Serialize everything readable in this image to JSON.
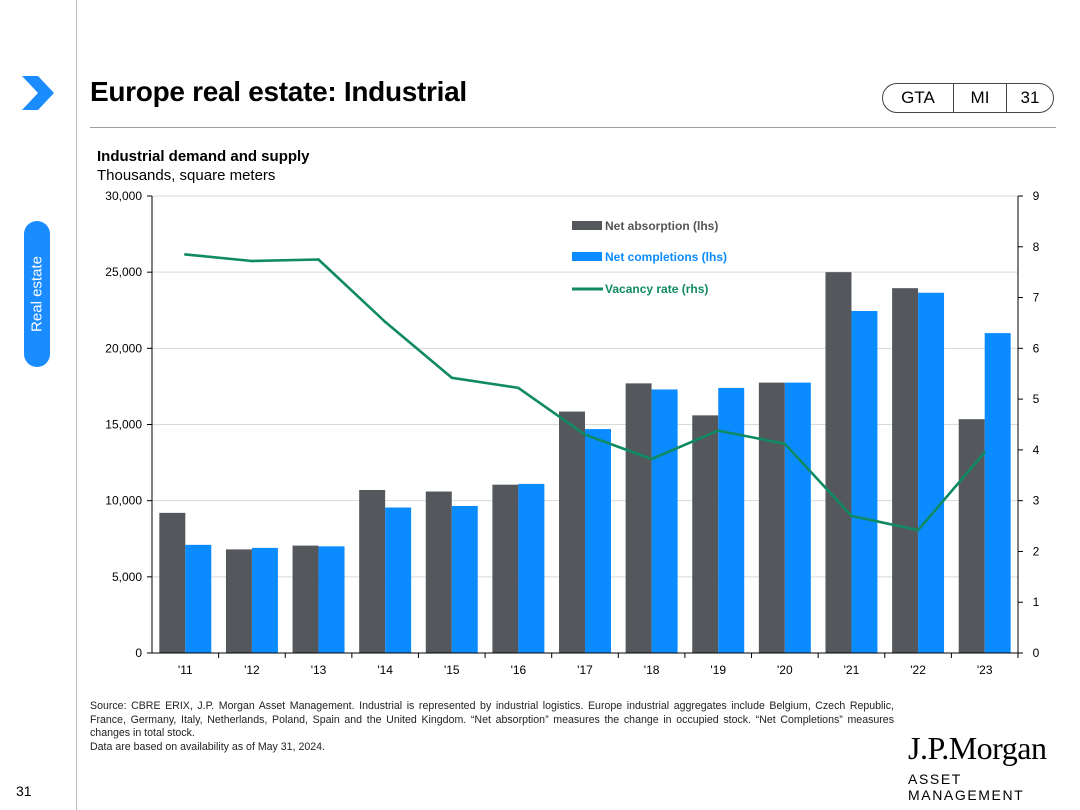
{
  "page": {
    "title": "Europe real estate: Industrial",
    "side_tab": "Real estate",
    "badges": [
      "GTA",
      "MI",
      "31"
    ],
    "page_number": "31"
  },
  "colors": {
    "absorption": "#54575c",
    "completions": "#0a8bff",
    "vacancy": "#0f8a62",
    "accent": "#1a8cff"
  },
  "chart_data": {
    "type": "bar",
    "title": "Industrial demand and supply",
    "subtitle": "Thousands, square meters",
    "categories": [
      "'11",
      "'12",
      "'13",
      "'14",
      "'15",
      "'16",
      "'17",
      "'18",
      "'19",
      "'20",
      "'21",
      "'22",
      "'23"
    ],
    "series": [
      {
        "name": "Net absorption (lhs)",
        "type": "bar",
        "axis": "left",
        "values": [
          9200,
          6800,
          7050,
          10700,
          10600,
          11050,
          15850,
          17700,
          15600,
          17750,
          25000,
          23950,
          15350
        ]
      },
      {
        "name": "Net completions (lhs)",
        "type": "bar",
        "axis": "left",
        "values": [
          7100,
          6900,
          7000,
          9550,
          9650,
          11100,
          14700,
          17300,
          17400,
          17750,
          22450,
          23650,
          21000
        ]
      },
      {
        "name": "Vacancy rate (rhs)",
        "type": "line",
        "axis": "right",
        "values": [
          7.85,
          7.72,
          7.75,
          6.52,
          5.42,
          5.22,
          4.3,
          3.82,
          4.38,
          4.12,
          2.7,
          2.42,
          3.95
        ]
      }
    ],
    "ylim_left": [
      0,
      30000
    ],
    "ylim_right": [
      0,
      9
    ],
    "yticks_left": [
      "0",
      "5,000",
      "10,000",
      "15,000",
      "20,000",
      "25,000",
      "30,000"
    ],
    "yticks_right": [
      "0",
      "1",
      "2",
      "3",
      "4",
      "5",
      "6",
      "7",
      "8",
      "9"
    ],
    "grid": true,
    "legend": "top-center"
  },
  "footer": {
    "source_lines": [
      "Source: CBRE ERIX, J.P. Morgan Asset Management. Industrial is represented by industrial logistics. Europe industrial aggregates include Belgium, Czech Republic, France, Germany, Italy, Netherlands, Poland, Spain and the United Kingdom. “Net absorption” measures the change in occupied stock. “Net Completions” measures changes in total stock.",
      "Data are based on availability as of May 31, 2024."
    ],
    "logo_name": "J.P.Morgan",
    "logo_sub": "ASSET MANAGEMENT"
  }
}
